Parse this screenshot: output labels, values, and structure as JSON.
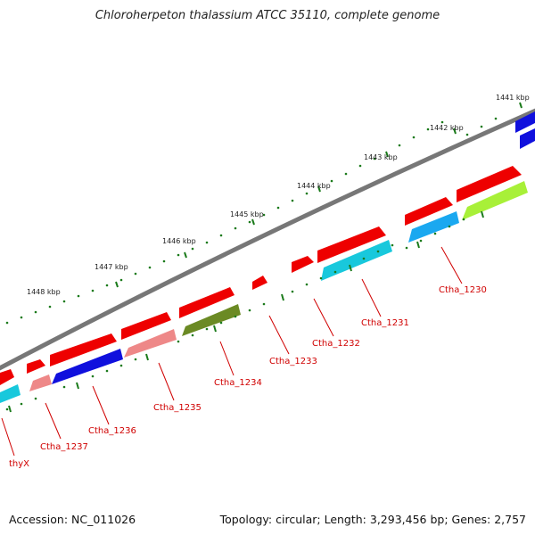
{
  "title": "Chloroherpeton thalassium ATCC 35110, complete genome",
  "accession": "Accession: NC_011026",
  "info": "Topology: circular; Length: 3,293,456 bp; Genes: 2,757",
  "colors": {
    "backbone": "#777777",
    "tick": "#1a7a1a",
    "gene_red": "#ee0000",
    "gene_blue": "#1010dd",
    "gene_pink": "#ee8888",
    "gene_cyan": "#18c8dc",
    "gene_sky": "#1aa8f0",
    "gene_olive": "#6b8a24",
    "gene_lime": "#a8f038",
    "label": "#d00000"
  },
  "kbp_labels": [
    "1441 kbp",
    "1442 kbp",
    "1443 kbp",
    "1444 kbp",
    "1445 kbp",
    "1446 kbp",
    "1447 kbp",
    "1448 kbp"
  ],
  "gene_labels": [
    "Ctha_1230",
    "Ctha_1231",
    "Ctha_1232",
    "Ctha_1233",
    "Ctha_1234",
    "Ctha_1235",
    "Ctha_1236",
    "Ctha_1237",
    "thyX"
  ]
}
